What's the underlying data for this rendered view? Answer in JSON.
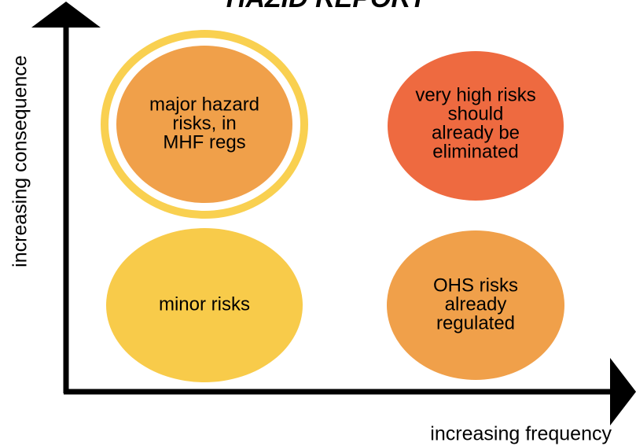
{
  "title": "HAZID REPORT",
  "y_axis_label": "increasing consequence",
  "x_axis_label": "increasing frequency",
  "quadrants": [
    {
      "lines": [
        "major hazard",
        "risks, in",
        "MHF regs"
      ]
    },
    {
      "lines": [
        "very high risks",
        "should",
        "already be",
        "eliminated"
      ]
    },
    {
      "lines": [
        "minor risks"
      ]
    },
    {
      "lines": [
        "OHS risks",
        "already",
        "regulated"
      ]
    }
  ]
}
